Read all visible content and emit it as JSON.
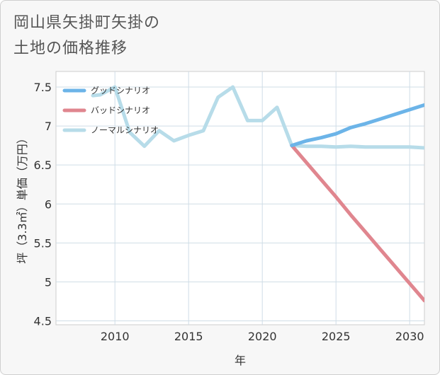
{
  "chart_data": {
    "type": "line",
    "title_lines": [
      "岡山県矢掛町矢掛の",
      "土地の価格推移"
    ],
    "xlabel": "年",
    "ylabel": "坪（3.3㎡）単価（万円）",
    "xlim": [
      2006,
      2031
    ],
    "ylim": [
      4.45,
      7.7
    ],
    "xticks": [
      2010,
      2015,
      2020,
      2025,
      2030
    ],
    "yticks": [
      4.5,
      5,
      5.5,
      6,
      6.5,
      7,
      7.5
    ],
    "ytick_labels": [
      "4.5",
      "5",
      "5.5",
      "6",
      "6.5",
      "7",
      "7.5"
    ],
    "legend_position": "top-left",
    "series": [
      {
        "name": "グッドシナリオ",
        "color": "#6cb4e8",
        "x": [
          2022,
          2023,
          2024,
          2025,
          2026,
          2027,
          2028,
          2029,
          2030,
          2031
        ],
        "y": [
          6.75,
          6.81,
          6.85,
          6.9,
          6.98,
          7.03,
          7.09,
          7.15,
          7.21,
          7.27
        ]
      },
      {
        "name": "バッドシナリオ",
        "color": "#e0868f",
        "x": [
          2022,
          2023,
          2024,
          2025,
          2026,
          2027,
          2028,
          2029,
          2030,
          2031
        ],
        "y": [
          6.75,
          6.53,
          6.31,
          6.09,
          5.86,
          5.64,
          5.42,
          5.2,
          4.98,
          4.76
        ]
      },
      {
        "name": "ノーマルシナリオ",
        "color": "#b7dce9",
        "x": [
          2008.5,
          2009,
          2010,
          2011,
          2012,
          2013,
          2014,
          2015,
          2016,
          2017,
          2018,
          2019,
          2020,
          2021,
          2022,
          2023,
          2024,
          2025,
          2026,
          2027,
          2028,
          2029,
          2030,
          2031
        ],
        "y": [
          7.39,
          7.4,
          7.5,
          6.92,
          6.74,
          6.94,
          6.81,
          6.88,
          6.94,
          7.37,
          7.5,
          7.07,
          7.07,
          7.24,
          6.75,
          6.74,
          6.74,
          6.73,
          6.74,
          6.73,
          6.73,
          6.73,
          6.73,
          6.72
        ]
      }
    ]
  }
}
